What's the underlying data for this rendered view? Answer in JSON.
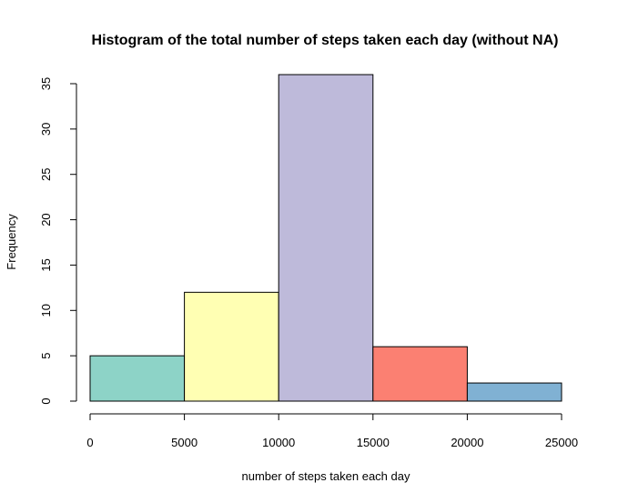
{
  "chart_data": {
    "type": "bar",
    "title": "Histogram of the total number of steps taken each day (without NA)",
    "xlabel": "number of steps taken each day",
    "ylabel": "Frequency",
    "bins": [
      {
        "from": 0,
        "to": 5000,
        "count": 5,
        "color": "#8DD3C7"
      },
      {
        "from": 5000,
        "to": 10000,
        "count": 12,
        "color": "#FFFFB3"
      },
      {
        "from": 10000,
        "to": 15000,
        "count": 36,
        "color": "#BEBADA"
      },
      {
        "from": 15000,
        "to": 20000,
        "count": 6,
        "color": "#FB8072"
      },
      {
        "from": 20000,
        "to": 25000,
        "count": 2,
        "color": "#80B1D3"
      }
    ],
    "xticks": [
      0,
      5000,
      10000,
      15000,
      20000,
      25000
    ],
    "yticks": [
      0,
      5,
      10,
      15,
      20,
      25,
      30,
      35
    ],
    "xlim": [
      0,
      25000
    ],
    "ylim": [
      0,
      35
    ],
    "grid": false
  }
}
